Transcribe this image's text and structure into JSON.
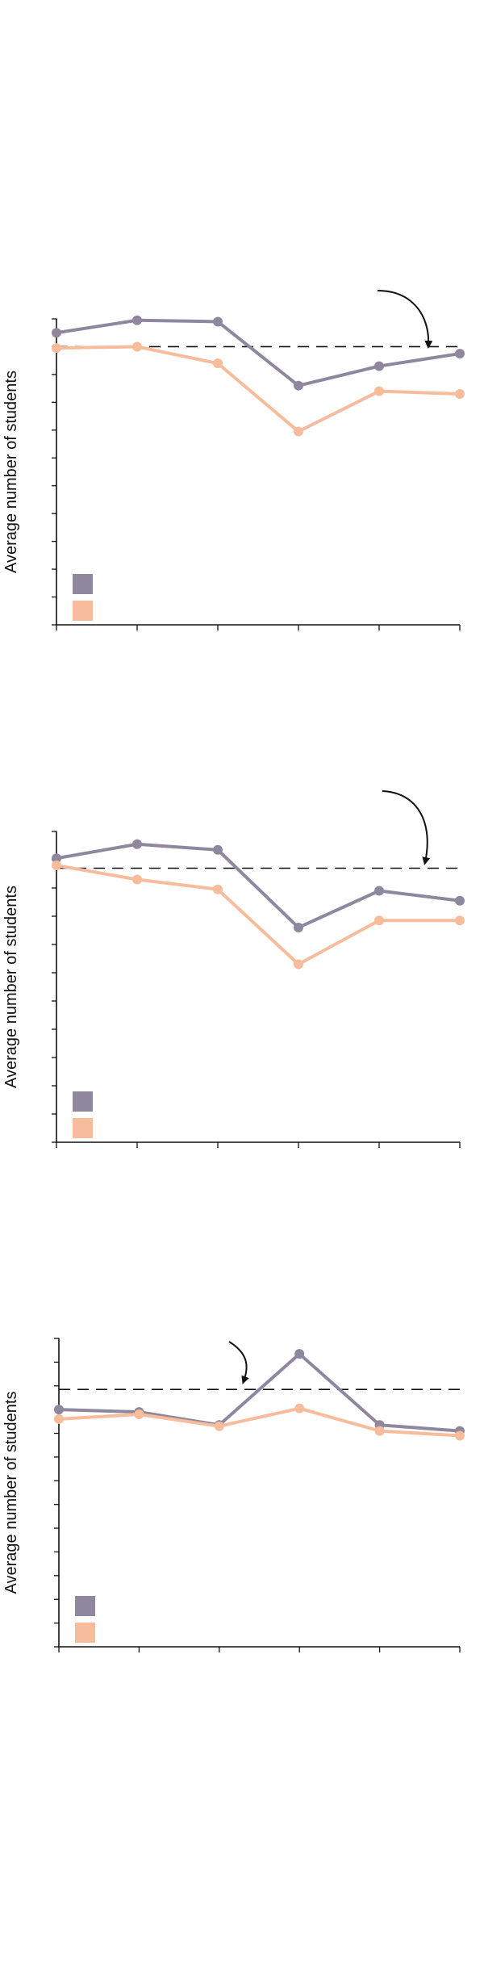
{
  "colors": {
    "series_1": "#8e879e",
    "series_2": "#f7bc9c",
    "axis": "#111111"
  },
  "chart_data": [
    {
      "type": "line",
      "title": "",
      "xlabel": "",
      "ylabel": "Average number of students",
      "x": [
        1,
        2,
        3,
        4,
        5,
        6
      ],
      "ylim": [
        0,
        11
      ],
      "y_ticks": [
        0,
        1,
        2,
        3,
        4,
        5,
        6,
        7,
        8,
        9,
        10,
        11
      ],
      "reference_line": 10,
      "grid": false,
      "legend": "bottom-left",
      "series": [
        {
          "values": [
            10.5,
            10.95,
            10.9,
            8.6,
            9.3,
            9.75
          ]
        },
        {
          "values": [
            9.95,
            10.0,
            9.4,
            6.95,
            8.4,
            8.3
          ]
        }
      ]
    },
    {
      "type": "line",
      "title": "",
      "xlabel": "",
      "ylabel": "Average number of students",
      "x": [
        1,
        2,
        3,
        4,
        5,
        6
      ],
      "ylim": [
        0,
        11
      ],
      "y_ticks": [
        0,
        1,
        2,
        3,
        4,
        5,
        6,
        7,
        8,
        9,
        10,
        11
      ],
      "reference_line": 9.7,
      "grid": false,
      "legend": "bottom-left",
      "series": [
        {
          "values": [
            10.05,
            10.55,
            10.35,
            7.6,
            8.9,
            8.55
          ]
        },
        {
          "values": [
            9.8,
            9.3,
            8.95,
            6.3,
            7.85,
            7.85
          ]
        }
      ]
    },
    {
      "type": "line",
      "title": "",
      "xlabel": "",
      "ylabel": "Average number of students",
      "x": [
        1,
        2,
        3,
        4,
        5,
        6
      ],
      "ylim": [
        0,
        13
      ],
      "y_ticks": [
        0,
        1,
        2,
        3,
        4,
        5,
        6,
        7,
        8,
        9,
        10,
        11,
        12,
        13
      ],
      "reference_line": 10.85,
      "grid": false,
      "legend": "bottom-left",
      "series": [
        {
          "values": [
            10.0,
            9.9,
            9.35,
            12.35,
            9.35,
            9.1
          ]
        },
        {
          "values": [
            9.6,
            9.8,
            9.3,
            10.05,
            9.1,
            8.9
          ]
        }
      ]
    }
  ]
}
